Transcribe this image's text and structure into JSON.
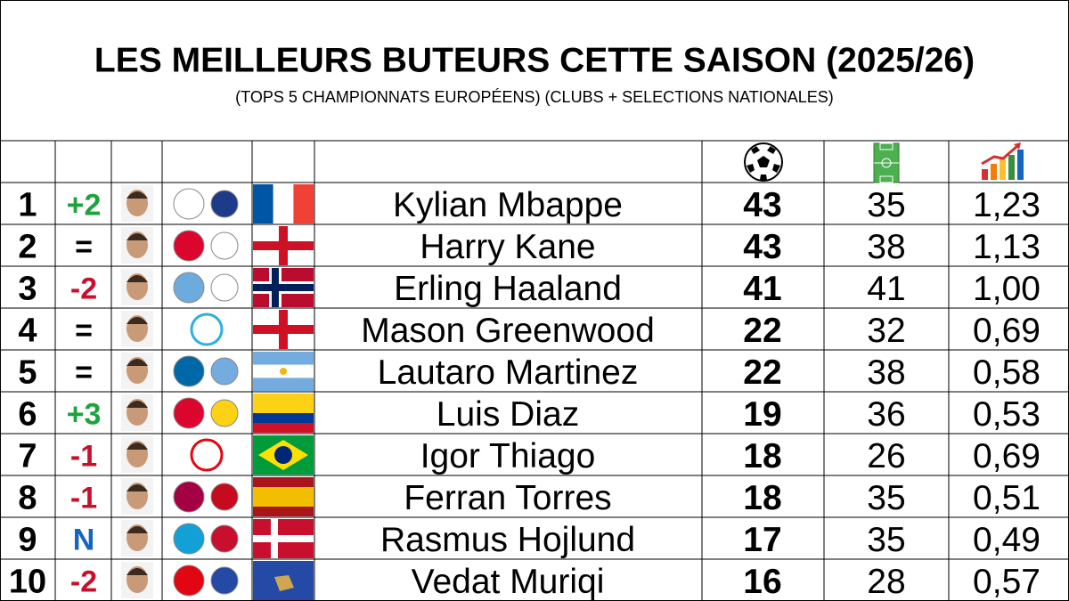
{
  "header": {
    "title": "LES MEILLEURS BUTEURS CETTE SAISON (2025/26)",
    "subtitle": "(TOPS 5 CHAMPIONNATS EUROPÉENS) (CLUBS + SELECTIONS NATIONALES)"
  },
  "table": {
    "rows": [
      {
        "rank": 1,
        "change": "+2",
        "player": "Kylian Mbappe",
        "goals": 43,
        "matches": 35,
        "ratio": "1,23"
      },
      {
        "rank": 2,
        "change": "=",
        "player": "Harry Kane",
        "goals": 43,
        "matches": 38,
        "ratio": "1,13"
      },
      {
        "rank": 3,
        "change": "-2",
        "player": "Erling Haaland",
        "goals": 41,
        "matches": 41,
        "ratio": "1,00"
      },
      {
        "rank": 4,
        "change": "=",
        "player": "Mason Greenwood",
        "goals": 22,
        "matches": 32,
        "ratio": "0,69"
      },
      {
        "rank": 5,
        "change": "=",
        "player": "Lautaro Martinez",
        "goals": 22,
        "matches": 38,
        "ratio": "0,58"
      },
      {
        "rank": 6,
        "change": "+3",
        "player": "Luis Diaz",
        "goals": 19,
        "matches": 36,
        "ratio": "0,53"
      },
      {
        "rank": 7,
        "change": "-1",
        "player": "Igor Thiago",
        "goals": 18,
        "matches": 26,
        "ratio": "0,69"
      },
      {
        "rank": 8,
        "change": "-1",
        "player": "Ferran Torres",
        "goals": 18,
        "matches": 35,
        "ratio": "0,51"
      },
      {
        "rank": 9,
        "change": "N",
        "player": "Rasmus Hojlund",
        "goals": 17,
        "matches": 35,
        "ratio": "0,49"
      },
      {
        "rank": 10,
        "change": "-2",
        "player": "Vedat Muriqi",
        "goals": 16,
        "matches": 28,
        "ratio": "0,57"
      }
    ]
  }
}
